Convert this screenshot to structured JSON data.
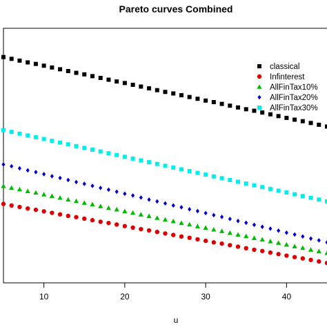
{
  "chart_data": {
    "type": "scatter",
    "title": "Pareto curves Combined",
    "xlabel": "u",
    "ylabel": "",
    "xlim": [
      5,
      45
    ],
    "ylim": [
      0,
      1
    ],
    "x_ticks": [
      10,
      20,
      30,
      40
    ],
    "x_tick_labels": [
      "10",
      "20",
      "30",
      "40"
    ],
    "x": [
      5,
      6,
      7,
      8,
      9,
      10,
      11,
      12,
      13,
      14,
      15,
      16,
      17,
      18,
      19,
      20,
      21,
      22,
      23,
      24,
      25,
      26,
      27,
      28,
      29,
      30,
      31,
      32,
      33,
      34,
      35,
      36,
      37,
      38,
      39,
      40,
      41,
      42,
      43,
      44,
      45
    ],
    "grid": false,
    "legend_position": "top-right",
    "series": [
      {
        "name": "classical",
        "marker": "square",
        "color": "#000000",
        "values": [
          0.887,
          0.88,
          0.873,
          0.866,
          0.86,
          0.853,
          0.846,
          0.839,
          0.832,
          0.825,
          0.819,
          0.812,
          0.805,
          0.798,
          0.791,
          0.785,
          0.778,
          0.771,
          0.764,
          0.757,
          0.75,
          0.744,
          0.737,
          0.73,
          0.723,
          0.716,
          0.71,
          0.703,
          0.696,
          0.689,
          0.682,
          0.676,
          0.669,
          0.662,
          0.655,
          0.648,
          0.641,
          0.635,
          0.628,
          0.621,
          0.614
        ]
      },
      {
        "name": "Infinterest",
        "marker": "circle",
        "color": "#dd0000",
        "values": [
          0.31,
          0.304,
          0.298,
          0.292,
          0.287,
          0.281,
          0.275,
          0.269,
          0.263,
          0.258,
          0.252,
          0.246,
          0.24,
          0.235,
          0.229,
          0.223,
          0.217,
          0.211,
          0.206,
          0.2,
          0.194,
          0.188,
          0.182,
          0.177,
          0.171,
          0.165,
          0.159,
          0.154,
          0.148,
          0.142,
          0.136,
          0.13,
          0.125,
          0.119,
          0.113,
          0.107,
          0.101,
          0.096,
          0.09,
          0.084,
          0.078
        ]
      },
      {
        "name": "AllFinTax10%",
        "marker": "triangle",
        "color": "#00bb00",
        "values": [
          0.38,
          0.373,
          0.367,
          0.36,
          0.354,
          0.347,
          0.341,
          0.334,
          0.327,
          0.321,
          0.314,
          0.308,
          0.301,
          0.294,
          0.288,
          0.281,
          0.275,
          0.268,
          0.262,
          0.255,
          0.248,
          0.242,
          0.235,
          0.229,
          0.222,
          0.216,
          0.209,
          0.203,
          0.196,
          0.189,
          0.183,
          0.176,
          0.17,
          0.163,
          0.157,
          0.15,
          0.143,
          0.137,
          0.13,
          0.124,
          0.117
        ]
      },
      {
        "name": "AllFinTax20%",
        "marker": "diamond",
        "color": "#0000cc",
        "values": [
          0.465,
          0.458,
          0.45,
          0.442,
          0.435,
          0.427,
          0.419,
          0.412,
          0.404,
          0.396,
          0.389,
          0.381,
          0.373,
          0.366,
          0.358,
          0.35,
          0.343,
          0.335,
          0.327,
          0.32,
          0.312,
          0.304,
          0.297,
          0.289,
          0.282,
          0.274,
          0.266,
          0.259,
          0.251,
          0.243,
          0.236,
          0.228,
          0.22,
          0.213,
          0.205,
          0.197,
          0.19,
          0.182,
          0.174,
          0.167,
          0.159
        ]
      },
      {
        "name": "AllFinTax30%",
        "marker": "square",
        "color": "#00eeee",
        "values": [
          0.6,
          0.593,
          0.586,
          0.579,
          0.572,
          0.565,
          0.558,
          0.551,
          0.544,
          0.537,
          0.53,
          0.523,
          0.516,
          0.509,
          0.502,
          0.495,
          0.488,
          0.481,
          0.474,
          0.467,
          0.46,
          0.453,
          0.446,
          0.439,
          0.432,
          0.425,
          0.418,
          0.411,
          0.404,
          0.397,
          0.39,
          0.383,
          0.376,
          0.369,
          0.362,
          0.355,
          0.348,
          0.341,
          0.334,
          0.327,
          0.32
        ]
      }
    ]
  }
}
